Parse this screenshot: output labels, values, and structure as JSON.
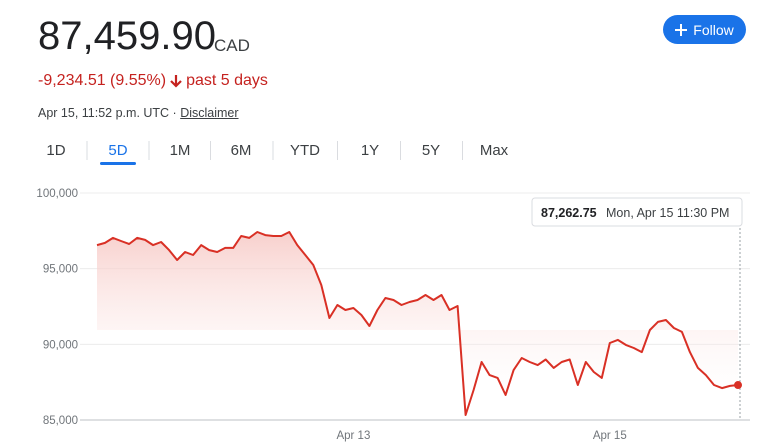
{
  "header": {
    "price": "87,459.90",
    "currency": "CAD",
    "change": "-9,234.51 (9.55%)",
    "period": "past 5 days",
    "timestamp": "Apr 15, 11:52 p.m. UTC",
    "disclaimer": "Disclaimer",
    "follow": "Follow"
  },
  "tabs": [
    "1D",
    "5D",
    "1M",
    "6M",
    "YTD",
    "1Y",
    "5Y",
    "Max"
  ],
  "selected_tab": 1,
  "tooltip": {
    "value": "87,262.75",
    "time": "Mon, Apr 15 11:30 PM"
  },
  "chart_data": {
    "type": "line",
    "color": "#d93025",
    "grid": true,
    "categories": [
      null,
      null,
      null,
      null,
      null,
      null,
      null,
      null,
      null,
      null,
      null,
      null,
      null,
      null,
      null,
      null,
      null,
      null,
      null,
      null,
      null,
      null,
      null,
      null,
      null,
      null,
      null,
      null,
      null,
      null,
      null,
      null,
      "Apr 13",
      null,
      null,
      null,
      null,
      null,
      null,
      null,
      null,
      null,
      null,
      null,
      null,
      null,
      null,
      null,
      null,
      null,
      null,
      null,
      null,
      null,
      null,
      null,
      null,
      null,
      null,
      null,
      null,
      null,
      null,
      null,
      "Apr 15",
      null,
      null,
      null,
      null,
      null,
      null,
      null,
      null,
      null,
      null,
      null,
      null,
      null,
      null,
      null,
      null
    ],
    "values": [
      96560,
      96700,
      97030,
      96830,
      96630,
      97030,
      96900,
      96560,
      96760,
      96230,
      95570,
      96100,
      95900,
      96560,
      96230,
      96100,
      96370,
      96370,
      97160,
      97030,
      97420,
      97220,
      97160,
      97160,
      97420,
      96560,
      95900,
      95240,
      93920,
      91740,
      92600,
      92270,
      92400,
      91940,
      91210,
      92270,
      93060,
      92930,
      92600,
      92800,
      92930,
      93260,
      92930,
      93260,
      92270,
      92530,
      85330,
      86980,
      88830,
      87970,
      87780,
      86650,
      88300,
      89100,
      88830,
      88630,
      89000,
      88440,
      88830,
      89000,
      87310,
      88830,
      88170,
      87780,
      90090,
      90290,
      89960,
      89760,
      89490,
      90950,
      91480,
      91610,
      91080,
      90820,
      89490,
      88440,
      87970,
      87310,
      87110,
      87250,
      87310
    ],
    "ylim": [
      85000,
      100000
    ],
    "yticks": [
      {
        "value": 85000,
        "label": "85,000"
      },
      {
        "value": 90000,
        "label": "90,000"
      },
      {
        "value": 95000,
        "label": "95,000"
      },
      {
        "value": 100000,
        "label": "100,000"
      }
    ]
  }
}
